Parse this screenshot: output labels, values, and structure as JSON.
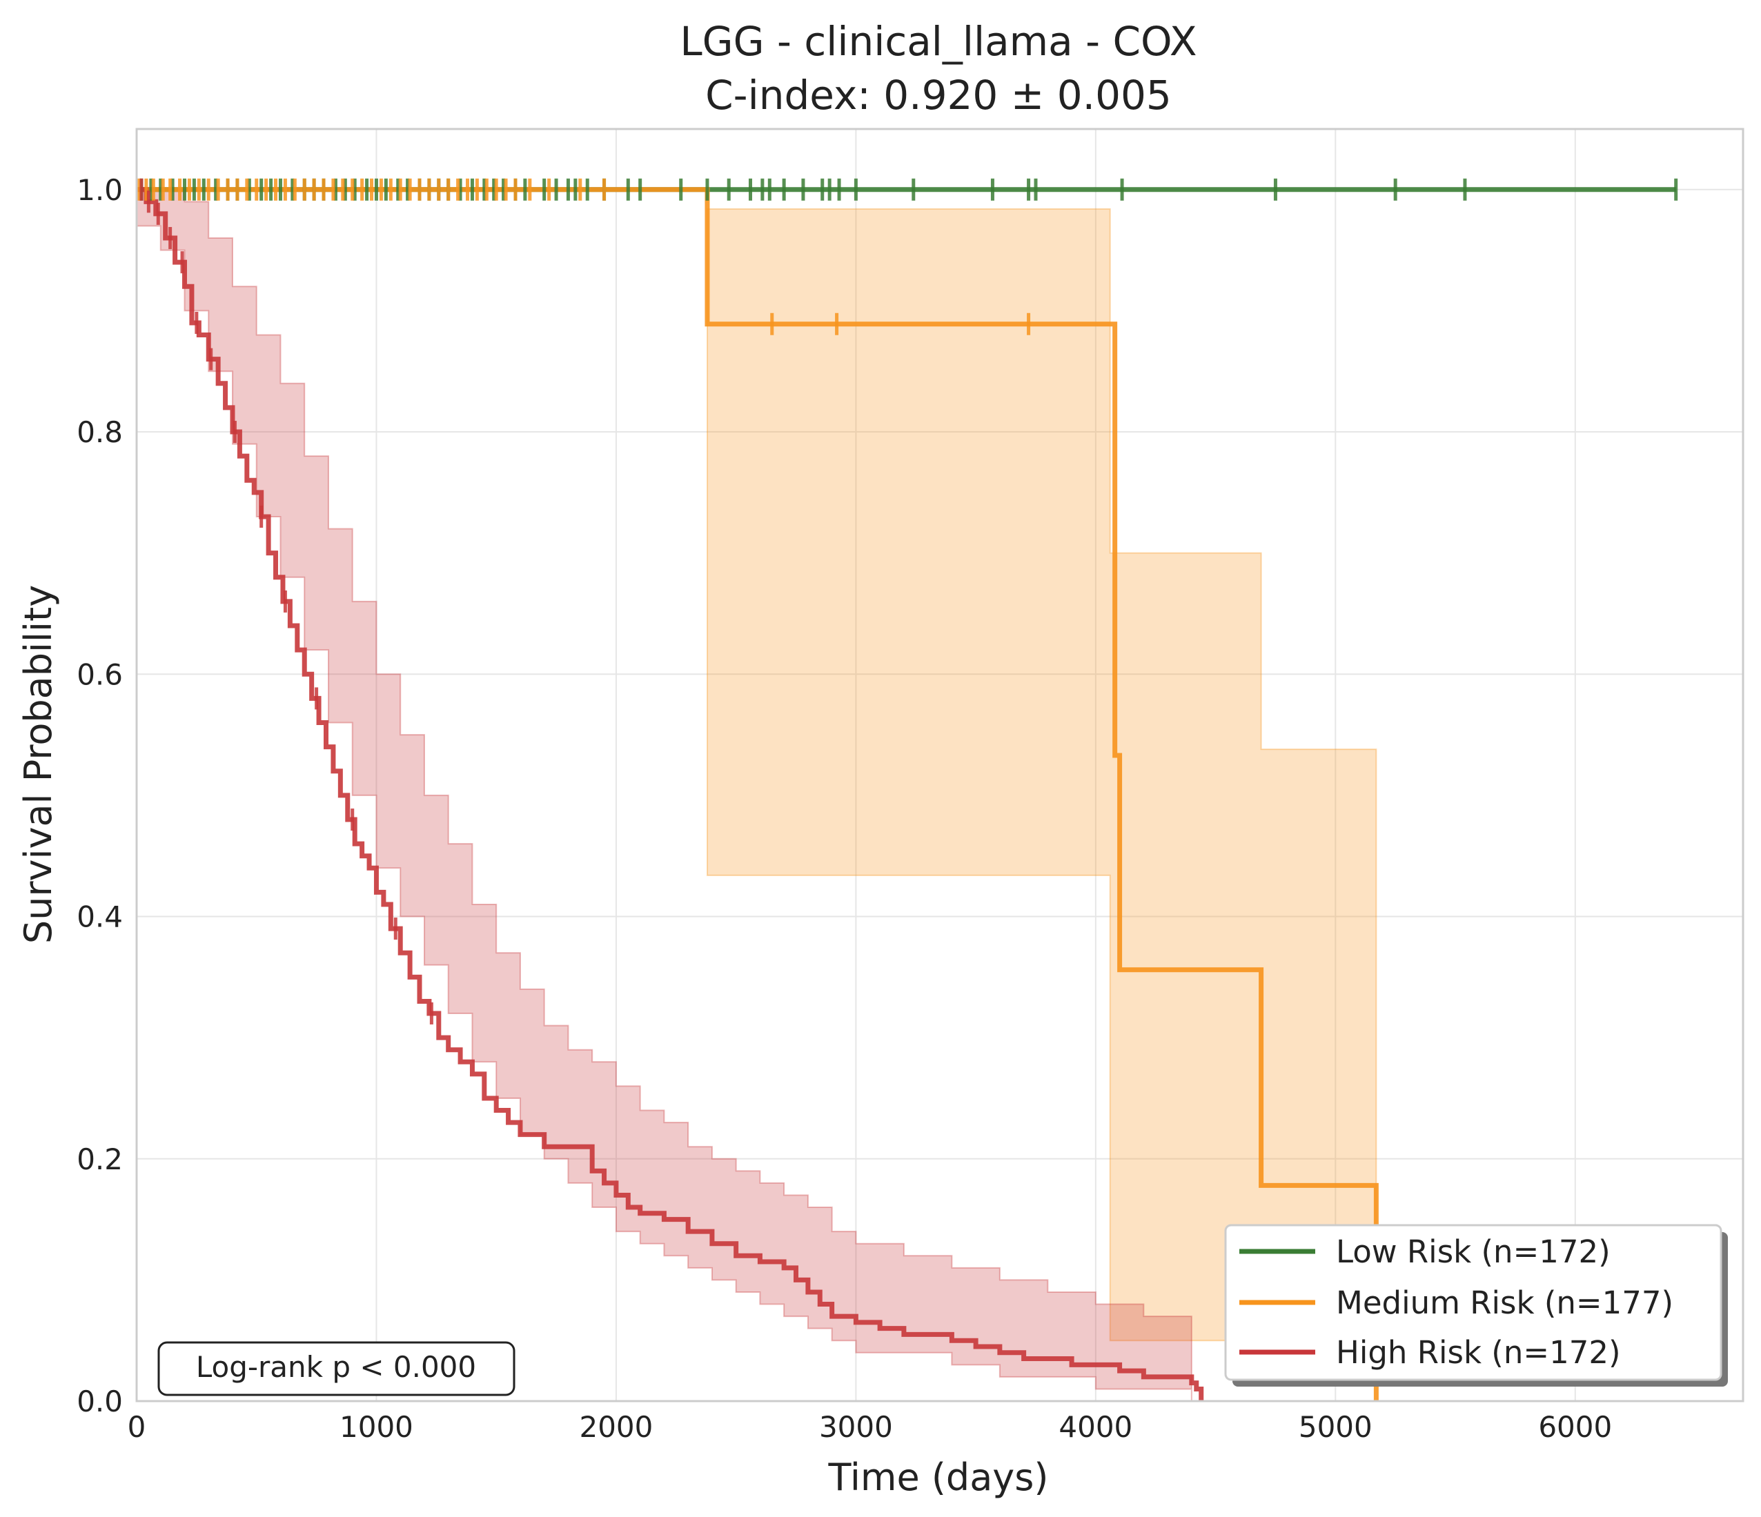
{
  "chart_data": {
    "type": "line",
    "title": "LGG - clinical_llama - COX",
    "subtitle": "C-index: 0.920 ± 0.005",
    "xlabel": "Time (days)",
    "ylabel": "Survival Probability",
    "xlim": [
      0,
      6700
    ],
    "ylim": [
      0,
      1.05
    ],
    "x_ticks": [
      0,
      1000,
      2000,
      3000,
      4000,
      5000,
      6000
    ],
    "x_tick_labels": [
      "0",
      "1000",
      "2000",
      "3000",
      "4000",
      "5000",
      "6000"
    ],
    "y_ticks": [
      0,
      0.2,
      0.4,
      0.6,
      0.8,
      1.0
    ],
    "y_tick_labels": [
      "0.0",
      "0.2",
      "0.4",
      "0.6",
      "0.8",
      "1.0"
    ],
    "grid": true,
    "legend_position": "bottom-right",
    "annotation": "Log-rank p < 0.000",
    "series": [
      {
        "name": "Low Risk (n=172)",
        "color": "#3a7d34",
        "x": [
          0,
          6420
        ],
        "y": [
          1.0,
          1.0
        ],
        "censor_x": [
          20,
          60,
          100,
          150,
          200,
          240,
          280,
          330,
          380,
          420,
          470,
          520,
          560,
          600,
          650,
          700,
          740,
          780,
          830,
          870,
          910,
          960,
          1000,
          1040,
          1090,
          1130,
          1180,
          1220,
          1260,
          1300,
          1350,
          1400,
          1450,
          1490,
          1530,
          1580,
          1620,
          1700,
          1750,
          1800,
          1830,
          1880,
          1950,
          2050,
          2100,
          2270,
          2380,
          2470,
          2560,
          2610,
          2640,
          2700,
          2780,
          2860,
          2890,
          2930,
          3000,
          3240,
          3570,
          3720,
          3750,
          4110,
          4750,
          5250,
          5540,
          6420
        ],
        "ci_upper": [],
        "ci_lower": []
      },
      {
        "name": "Medium Risk (n=177)",
        "color": "#f7941d",
        "x": [
          0,
          2380,
          2380,
          4080,
          4080,
          4100,
          4100,
          4690,
          4690,
          5170,
          5170
        ],
        "y": [
          1.0,
          1.0,
          0.889,
          0.889,
          0.533,
          0.533,
          0.356,
          0.356,
          0.178,
          0.178,
          0.0
        ],
        "censor_x": [
          10,
          40,
          70,
          110,
          140,
          180,
          220,
          260,
          300,
          340,
          380,
          420,
          460,
          500,
          540,
          580,
          620,
          660,
          700,
          740,
          780,
          820,
          860,
          900,
          940,
          980,
          1020,
          1060,
          1100,
          1140,
          1180,
          1220,
          1260,
          1300,
          1340,
          1380,
          1420,
          1460,
          1500,
          1540,
          1580,
          1640,
          1720,
          1850,
          1950,
          2650,
          2920,
          3720
        ],
        "censor_y": [
          1.0,
          1.0,
          1.0,
          1.0,
          1.0,
          1.0,
          1.0,
          1.0,
          1.0,
          1.0,
          1.0,
          1.0,
          1.0,
          1.0,
          1.0,
          1.0,
          1.0,
          1.0,
          1.0,
          1.0,
          1.0,
          1.0,
          1.0,
          1.0,
          1.0,
          1.0,
          1.0,
          1.0,
          1.0,
          1.0,
          1.0,
          1.0,
          1.0,
          1.0,
          1.0,
          1.0,
          1.0,
          1.0,
          1.0,
          1.0,
          1.0,
          1.0,
          1.0,
          1.0,
          1.0,
          0.889,
          0.889,
          0.889
        ],
        "ci_x": [
          2380,
          4060,
          4060,
          4690,
          4690,
          5170
        ],
        "ci_upper": [
          0.984,
          0.984,
          0.7,
          0.7,
          0.538,
          0.538
        ],
        "ci_lower": [
          0.434,
          0.434,
          0.05,
          0.05,
          0.05,
          0.05
        ]
      },
      {
        "name": "High Risk (n=172)",
        "color": "#c8373a",
        "x": [
          0,
          40,
          80,
          120,
          160,
          200,
          230,
          260,
          300,
          340,
          370,
          400,
          430,
          460,
          490,
          520,
          550,
          580,
          610,
          640,
          670,
          700,
          730,
          760,
          790,
          820,
          850,
          880,
          910,
          940,
          970,
          1000,
          1030,
          1060,
          1100,
          1140,
          1180,
          1220,
          1260,
          1300,
          1350,
          1400,
          1450,
          1500,
          1550,
          1600,
          1650,
          1700,
          1800,
          1900,
          1950,
          2000,
          2050,
          2100,
          2200,
          2300,
          2400,
          2500,
          2600,
          2700,
          2750,
          2800,
          2850,
          2900,
          3000,
          3100,
          3200,
          3300,
          3400,
          3500,
          3600,
          3700,
          3800,
          3900,
          4000,
          4100,
          4200,
          4300,
          4400,
          4420,
          4440
        ],
        "y": [
          1.0,
          0.99,
          0.98,
          0.96,
          0.94,
          0.92,
          0.89,
          0.88,
          0.86,
          0.84,
          0.82,
          0.8,
          0.78,
          0.76,
          0.75,
          0.73,
          0.7,
          0.68,
          0.66,
          0.64,
          0.62,
          0.6,
          0.58,
          0.56,
          0.54,
          0.52,
          0.5,
          0.48,
          0.46,
          0.45,
          0.44,
          0.42,
          0.41,
          0.39,
          0.37,
          0.35,
          0.33,
          0.32,
          0.3,
          0.29,
          0.28,
          0.27,
          0.25,
          0.24,
          0.23,
          0.22,
          0.22,
          0.21,
          0.21,
          0.19,
          0.18,
          0.17,
          0.16,
          0.155,
          0.15,
          0.14,
          0.13,
          0.12,
          0.115,
          0.11,
          0.1,
          0.09,
          0.08,
          0.07,
          0.065,
          0.06,
          0.055,
          0.055,
          0.05,
          0.045,
          0.04,
          0.035,
          0.035,
          0.03,
          0.03,
          0.025,
          0.02,
          0.02,
          0.015,
          0.01,
          0.0
        ],
        "censor_x": [
          20,
          50,
          90,
          140,
          190,
          250,
          310,
          410,
          520,
          620,
          750,
          900,
          1080,
          1230
        ],
        "ci_x": [
          0,
          100,
          200,
          300,
          400,
          500,
          600,
          700,
          800,
          900,
          1000,
          1100,
          1200,
          1300,
          1400,
          1500,
          1600,
          1700,
          1800,
          1900,
          2000,
          2100,
          2200,
          2300,
          2400,
          2500,
          2600,
          2700,
          2800,
          2900,
          3000,
          3200,
          3400,
          3600,
          3800,
          4000,
          4200,
          4400
        ],
        "ci_upper": [
          1.0,
          1.0,
          0.99,
          0.96,
          0.92,
          0.88,
          0.84,
          0.78,
          0.72,
          0.66,
          0.6,
          0.55,
          0.5,
          0.46,
          0.41,
          0.37,
          0.34,
          0.31,
          0.29,
          0.28,
          0.26,
          0.24,
          0.23,
          0.21,
          0.2,
          0.19,
          0.18,
          0.17,
          0.16,
          0.14,
          0.13,
          0.12,
          0.11,
          0.1,
          0.09,
          0.08,
          0.07,
          0.06
        ],
        "ci_lower": [
          0.97,
          0.95,
          0.9,
          0.85,
          0.79,
          0.73,
          0.68,
          0.62,
          0.56,
          0.5,
          0.44,
          0.4,
          0.36,
          0.32,
          0.28,
          0.25,
          0.22,
          0.2,
          0.18,
          0.16,
          0.14,
          0.13,
          0.12,
          0.11,
          0.1,
          0.09,
          0.08,
          0.07,
          0.06,
          0.05,
          0.04,
          0.04,
          0.03,
          0.02,
          0.02,
          0.01,
          0.01,
          0.0
        ]
      }
    ]
  }
}
